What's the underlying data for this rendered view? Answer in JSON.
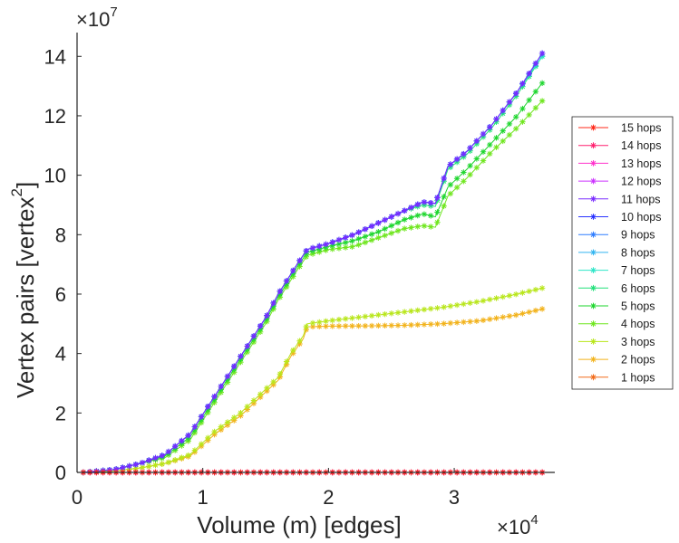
{
  "chart_data": {
    "type": "line",
    "title": "",
    "xlabel": "Volume (m) [edges]",
    "ylabel_main": "Vertex pairs [vertex",
    "ylabel_sup": "2",
    "ylabel_close": "]",
    "x_exponent": {
      "base": "×10",
      "power": "4"
    },
    "y_exponent": {
      "base": "×10",
      "power": "7"
    },
    "xlim": [
      0,
      3.8
    ],
    "ylim": [
      0,
      14.8
    ],
    "xticks": [
      0,
      1,
      2,
      3
    ],
    "xtick_labels": [
      "0",
      "1",
      "2",
      "3"
    ],
    "yticks": [
      0,
      2,
      4,
      6,
      8,
      10,
      12,
      14
    ],
    "ytick_labels": [
      "0",
      "2",
      "4",
      "6",
      "8",
      "10",
      "12",
      "14"
    ],
    "marker": "asterisk",
    "legend_position": "right",
    "series": [
      {
        "name": "15 hops",
        "color": "#ff2a1a",
        "x": [
          0.05,
          0.5,
          1.0,
          1.5,
          1.8,
          2.2,
          2.6,
          2.9,
          3.2,
          3.7
        ],
        "y": [
          0,
          0,
          0,
          0,
          0,
          0,
          0,
          0,
          0,
          0
        ]
      },
      {
        "name": "14 hops",
        "color": "#ff1f6e",
        "x": [
          0.05,
          0.5,
          1.0,
          1.5,
          1.8,
          2.2,
          2.6,
          2.9,
          3.2,
          3.7
        ],
        "y": [
          0,
          0,
          0,
          0,
          0,
          0,
          0,
          0,
          0,
          0
        ]
      },
      {
        "name": "13 hops",
        "color": "#ff33cc",
        "x": [
          0.05,
          0.5,
          1.0,
          1.5,
          1.8,
          2.2,
          2.6,
          2.9,
          3.2,
          3.7
        ],
        "y": [
          0,
          0,
          0,
          0,
          0,
          0,
          0,
          0,
          0,
          0
        ]
      },
      {
        "name": "12 hops",
        "color": "#cc33ff",
        "x": [
          0.05,
          0.5,
          1.0,
          1.5,
          1.8,
          2.2,
          2.6,
          2.9,
          3.2,
          3.7
        ],
        "y": [
          0,
          0,
          0,
          0,
          0,
          0,
          0,
          0,
          0,
          0
        ]
      },
      {
        "name": "11 hops",
        "color": "#7a2bff",
        "x": [
          0.05,
          0.3,
          0.5,
          0.7,
          0.9,
          1.1,
          1.3,
          1.5,
          1.6,
          1.75,
          1.83,
          2.0,
          2.2,
          2.4,
          2.6,
          2.75,
          2.85,
          2.95,
          3.1,
          3.3,
          3.5,
          3.7
        ],
        "y": [
          0,
          0.1,
          0.3,
          0.6,
          1.3,
          2.6,
          3.9,
          5.2,
          6.0,
          7.0,
          7.5,
          7.7,
          8.0,
          8.4,
          8.8,
          9.1,
          9.05,
          10.3,
          10.8,
          11.7,
          12.8,
          14.1
        ]
      },
      {
        "name": "10 hops",
        "color": "#2a33ff",
        "x": [
          0.05,
          0.3,
          0.5,
          0.7,
          0.9,
          1.1,
          1.3,
          1.5,
          1.6,
          1.75,
          1.83,
          2.0,
          2.2,
          2.4,
          2.6,
          2.75,
          2.85,
          2.95,
          3.1,
          3.3,
          3.5,
          3.7
        ],
        "y": [
          0,
          0.1,
          0.3,
          0.6,
          1.3,
          2.6,
          3.9,
          5.2,
          6.0,
          7.0,
          7.5,
          7.7,
          8.0,
          8.4,
          8.8,
          9.1,
          9.05,
          10.3,
          10.8,
          11.7,
          12.8,
          14.1
        ]
      },
      {
        "name": "9 hops",
        "color": "#2e7dff",
        "x": [
          0.05,
          0.3,
          0.5,
          0.7,
          0.9,
          1.1,
          1.3,
          1.5,
          1.6,
          1.75,
          1.83,
          2.0,
          2.2,
          2.4,
          2.6,
          2.75,
          2.85,
          2.95,
          3.1,
          3.3,
          3.5,
          3.7
        ],
        "y": [
          0,
          0.1,
          0.3,
          0.6,
          1.3,
          2.6,
          3.9,
          5.2,
          6.0,
          7.0,
          7.5,
          7.7,
          8.0,
          8.4,
          8.8,
          9.1,
          9.05,
          10.3,
          10.8,
          11.7,
          12.8,
          14.1
        ]
      },
      {
        "name": "8 hops",
        "color": "#33b5f0",
        "x": [
          0.05,
          0.3,
          0.5,
          0.7,
          0.9,
          1.1,
          1.3,
          1.5,
          1.6,
          1.75,
          1.83,
          2.0,
          2.2,
          2.4,
          2.6,
          2.75,
          2.85,
          2.95,
          3.1,
          3.3,
          3.5,
          3.7
        ],
        "y": [
          0,
          0.1,
          0.3,
          0.6,
          1.3,
          2.6,
          3.9,
          5.2,
          6.0,
          7.0,
          7.5,
          7.7,
          8.0,
          8.4,
          8.8,
          9.1,
          9.05,
          10.3,
          10.8,
          11.7,
          12.8,
          14.1
        ]
      },
      {
        "name": "7 hops",
        "color": "#2ee6c8",
        "x": [
          0.05,
          0.3,
          0.5,
          0.7,
          0.9,
          1.1,
          1.3,
          1.5,
          1.6,
          1.75,
          1.83,
          2.0,
          2.2,
          2.4,
          2.6,
          2.75,
          2.85,
          2.95,
          3.1,
          3.3,
          3.5,
          3.7
        ],
        "y": [
          0,
          0.1,
          0.3,
          0.6,
          1.3,
          2.6,
          3.9,
          5.2,
          6.0,
          7.0,
          7.5,
          7.7,
          8.0,
          8.4,
          8.8,
          9.1,
          9.05,
          10.3,
          10.8,
          11.7,
          12.8,
          14.0
        ]
      },
      {
        "name": "6 hops",
        "color": "#22e07a",
        "x": [
          0.05,
          0.3,
          0.5,
          0.7,
          0.9,
          1.1,
          1.3,
          1.5,
          1.6,
          1.75,
          1.83,
          2.0,
          2.2,
          2.4,
          2.6,
          2.75,
          2.85,
          2.95,
          3.1,
          3.3,
          3.5,
          3.7
        ],
        "y": [
          0,
          0.1,
          0.3,
          0.6,
          1.3,
          2.6,
          3.9,
          5.2,
          6.0,
          7.0,
          7.5,
          7.7,
          8.0,
          8.4,
          8.8,
          9.0,
          8.95,
          10.2,
          10.7,
          11.6,
          12.7,
          14.0
        ]
      },
      {
        "name": "5 hops",
        "color": "#1ed62e",
        "x": [
          0.05,
          0.3,
          0.5,
          0.7,
          0.9,
          1.1,
          1.3,
          1.5,
          1.6,
          1.75,
          1.83,
          2.0,
          2.2,
          2.4,
          2.6,
          2.75,
          2.85,
          2.95,
          3.1,
          3.3,
          3.5,
          3.7
        ],
        "y": [
          0,
          0.1,
          0.3,
          0.55,
          1.2,
          2.5,
          3.8,
          5.1,
          5.9,
          6.9,
          7.4,
          7.6,
          7.8,
          8.1,
          8.5,
          8.7,
          8.6,
          9.6,
          10.2,
          11.1,
          12.0,
          13.1
        ]
      },
      {
        "name": "4 hops",
        "color": "#6fe61e",
        "x": [
          0.05,
          0.3,
          0.5,
          0.7,
          0.9,
          1.1,
          1.3,
          1.5,
          1.6,
          1.75,
          1.83,
          2.0,
          2.2,
          2.4,
          2.6,
          2.75,
          2.85,
          2.95,
          3.1,
          3.3,
          3.5,
          3.7
        ],
        "y": [
          0,
          0.1,
          0.3,
          0.5,
          1.1,
          2.4,
          3.7,
          5.0,
          5.8,
          6.8,
          7.3,
          7.5,
          7.6,
          7.9,
          8.2,
          8.3,
          8.25,
          9.3,
          9.9,
          10.8,
          11.6,
          12.5
        ]
      },
      {
        "name": "3 hops",
        "color": "#b8e61a",
        "x": [
          0.05,
          0.3,
          0.5,
          0.7,
          0.9,
          1.1,
          1.3,
          1.5,
          1.6,
          1.7,
          1.8,
          1.83,
          2.0,
          2.3,
          2.6,
          2.9,
          3.2,
          3.5,
          3.7
        ],
        "y": [
          0,
          0.05,
          0.15,
          0.3,
          0.6,
          1.4,
          2.0,
          2.8,
          3.2,
          4.0,
          4.6,
          5.0,
          5.1,
          5.25,
          5.4,
          5.55,
          5.75,
          6.0,
          6.2
        ]
      },
      {
        "name": "2 hops",
        "color": "#f2b21a",
        "x": [
          0.05,
          0.3,
          0.5,
          0.7,
          0.9,
          1.1,
          1.3,
          1.5,
          1.6,
          1.7,
          1.8,
          1.83,
          2.0,
          2.3,
          2.6,
          2.9,
          3.2,
          3.5,
          3.7
        ],
        "y": [
          0,
          0.05,
          0.15,
          0.3,
          0.55,
          1.3,
          1.9,
          2.7,
          3.1,
          3.9,
          4.5,
          4.9,
          4.92,
          4.93,
          4.95,
          5.0,
          5.1,
          5.3,
          5.5
        ]
      },
      {
        "name": "1 hops",
        "color": "#f26b1a",
        "x": [
          0.05,
          0.5,
          1.0,
          1.5,
          1.8,
          2.2,
          2.6,
          2.9,
          3.2,
          3.7
        ],
        "y": [
          0,
          0,
          0,
          0,
          0,
          0,
          0,
          0,
          0,
          0
        ]
      }
    ]
  }
}
